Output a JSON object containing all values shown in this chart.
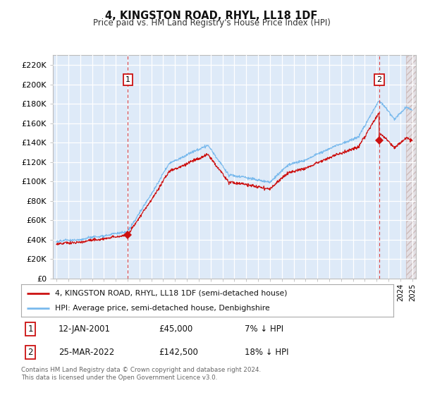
{
  "title": "4, KINGSTON ROAD, RHYL, LL18 1DF",
  "subtitle": "Price paid vs. HM Land Registry's House Price Index (HPI)",
  "ylabel_ticks": [
    "£0",
    "£20K",
    "£40K",
    "£60K",
    "£80K",
    "£100K",
    "£120K",
    "£140K",
    "£160K",
    "£180K",
    "£200K",
    "£220K"
  ],
  "ytick_values": [
    0,
    20000,
    40000,
    60000,
    80000,
    100000,
    120000,
    140000,
    160000,
    180000,
    200000,
    220000
  ],
  "ylim": [
    0,
    230000
  ],
  "xlim_start": 1994.7,
  "xlim_end": 2025.3,
  "hpi_color": "#7abaed",
  "price_color": "#cc1111",
  "vline_color": "#dd4444",
  "background_color": "#ffffff",
  "plot_bg_color": "#deeaf8",
  "grid_color": "#ffffff",
  "legend_entry1": "4, KINGSTON ROAD, RHYL, LL18 1DF (semi-detached house)",
  "legend_entry2": "HPI: Average price, semi-detached house, Denbighshire",
  "transaction1_date": "12-JAN-2001",
  "transaction1_price": "£45,000",
  "transaction1_hpi": "7% ↓ HPI",
  "transaction1_year": 2001.03,
  "transaction1_value": 45000,
  "transaction2_date": "25-MAR-2022",
  "transaction2_price": "£142,500",
  "transaction2_hpi": "18% ↓ HPI",
  "transaction2_year": 2022.23,
  "transaction2_value": 142500,
  "footer": "Contains HM Land Registry data © Crown copyright and database right 2024.\nThis data is licensed under the Open Government Licence v3.0."
}
